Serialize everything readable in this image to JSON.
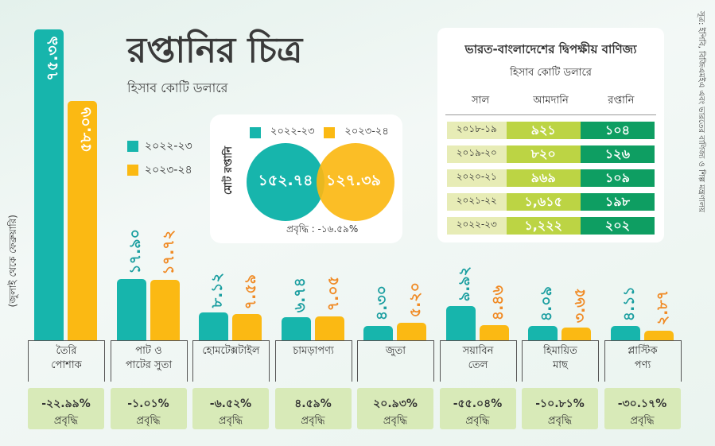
{
  "title": "রপ্তানির চিত্র",
  "subtitle": "হিসাব কোটি ডলারে",
  "period_note": "(জুলাই থেকে ফেব্রুয়ারি)",
  "source": "সূত্র: ইপিবি, বিজিএমইএ এবং ভারতের বাণিজ্য ও শিল্প মন্ত্রণালয়",
  "colors": {
    "y2022": "#17b5ac",
    "y2023": "#fbb913",
    "label2023": "#f08a24",
    "label2022": "#1a9ea0"
  },
  "chart_data": {
    "type": "bar",
    "categories": [
      "তৈরি\nপোশাক",
      "পাট ও\nপাটের সুতা",
      "হোমটেক্সটাইল",
      "চামড়াপণ্য",
      "জুতা",
      "সয়াবিন\nতেল",
      "হিমায়িত\nমাছ",
      "প্লাস্টিক\nপণ্য"
    ],
    "series": [
      {
        "name": "২০২২-২৩",
        "values": [
          75.39,
          17.9,
          8.12,
          6.74,
          4.3,
          9.92,
          4.09,
          4.11
        ],
        "labels": [
          "৭৫.৩৯",
          "১৭.৯০",
          "৮.১২",
          "৬.৭৪",
          "৪.৩০",
          "৯.৯২",
          "৪.০৯",
          "৪.১১"
        ]
      },
      {
        "name": "২০২৩-২৪",
        "values": [
          58.06,
          17.72,
          7.59,
          7.05,
          5.2,
          4.46,
          3.65,
          2.87
        ],
        "labels": [
          "৫৮.০৬",
          "১৭.৭২",
          "৭.৫৯",
          "৭.০৫",
          "৫.২০",
          "৪.৪৬",
          "৩.৬৫",
          "২.৮৭"
        ]
      }
    ],
    "growth": [
      "-২২.৯৯%",
      "-১.০১%",
      "-৬.৫২%",
      "৪.৫৯%",
      "২০.৯৩%",
      "-৫৫.০৪%",
      "-১০.৮১%",
      "-৩০.১৭%"
    ],
    "growth_label": "প্রবৃদ্ধি"
  },
  "total": {
    "label": "মোট রপ্তানি",
    "y2022": "১৫২.৭৪",
    "y2023": "১২৭.৩৯",
    "growth": "প্রবৃদ্ধি : -১৬.৫৯%"
  },
  "trade_table": {
    "title": "ভারত-বাংলাদেশের দ্বিপক্ষীয় বাণিজ্য",
    "subtitle": "হিসাব কোটি ডলারে",
    "headers": [
      "সাল",
      "আমদানি",
      "রপ্তানি"
    ],
    "rows": [
      [
        "২০১৮-১৯",
        "৯২১",
        "১০৪"
      ],
      [
        "২০১৯-২০",
        "৮২০",
        "১২৬"
      ],
      [
        "২০২০-২১",
        "৯৬৯",
        "১০৯"
      ],
      [
        "২০২১-২২",
        "১,৬১৫",
        "১৯৮"
      ],
      [
        "২০২২-২৩",
        "১,২২২",
        "২০২"
      ]
    ]
  }
}
